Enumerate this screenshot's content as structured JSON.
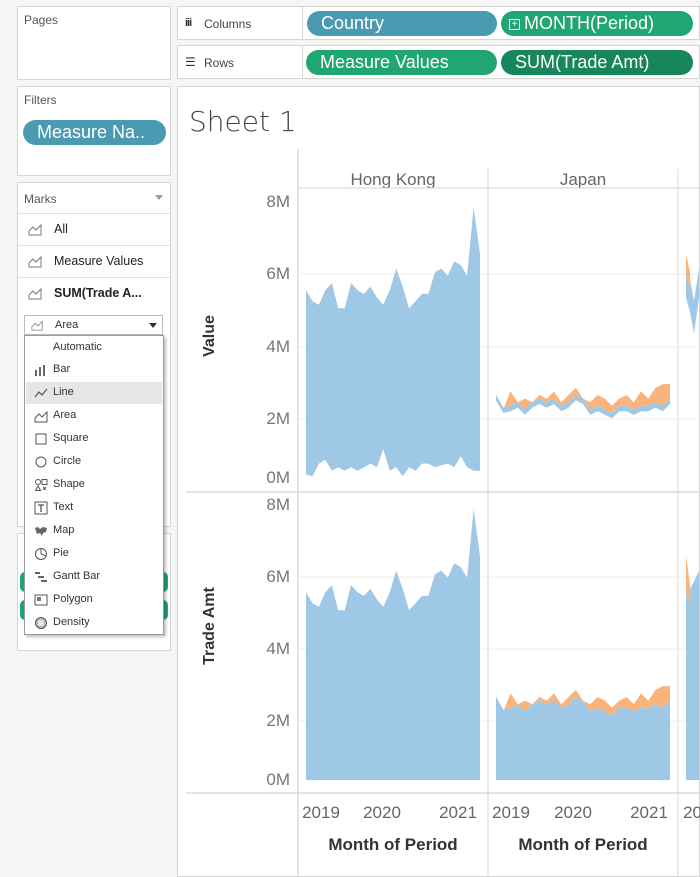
{
  "left": {
    "pages_title": "Pages",
    "filters_title": "Filters",
    "filter_pill": "Measure Na..",
    "marks_title": "Marks",
    "marks_rows": [
      "All",
      "Measure Values",
      "SUM(Trade A..."
    ],
    "mark_type_selected": "Area",
    "mark_type_options": [
      "Automatic",
      "Bar",
      "Line",
      "Area",
      "Square",
      "Circle",
      "Shape",
      "Text",
      "Map",
      "Pie",
      "Gantt Bar",
      "Polygon",
      "Density"
    ],
    "highlighted_option": "Line"
  },
  "shelves": {
    "columns_label": "Columns",
    "rows_label": "Rows",
    "columns_pills": [
      "Country",
      "MONTH(Period)"
    ],
    "rows_pills": [
      "Measure Values",
      "SUM(Trade Amt)"
    ]
  },
  "sheet": {
    "title": "Sheet 1"
  },
  "chart_data": {
    "type": "area",
    "countries": [
      "Hong Kong",
      "Japan"
    ],
    "row_titles": [
      "Value",
      "Trade Amt"
    ],
    "y_ticks": [
      "0M",
      "2M",
      "4M",
      "6M",
      "8M"
    ],
    "ylim": [
      0,
      8000000
    ],
    "x_ticks": [
      "2019",
      "2020",
      "2021"
    ],
    "xlabel": "Month of Period",
    "colors": {
      "blue": "#9ec8e5",
      "orange": "#fbb37a"
    },
    "hong_kong_upper": [
      5.2,
      4.9,
      4.8,
      5.2,
      5.4,
      4.7,
      4.7,
      5.4,
      5.2,
      5.1,
      5.3,
      5.0,
      4.8,
      5.2,
      5.8,
      5.3,
      4.7,
      4.9,
      5.1,
      5.1,
      5.7,
      5.8,
      5.6,
      6.0,
      5.9,
      5.6,
      7.5,
      6.2
    ],
    "hong_kong_value_lower": [
      0.1,
      0.05,
      0.4,
      0.5,
      0.2,
      0.3,
      0.2,
      0.3,
      0.2,
      0.3,
      0.4,
      0.3,
      0.8,
      0.2,
      0.3,
      0.05,
      0.3,
      0.2,
      0.4,
      0.4,
      0.3,
      0.35,
      0.4,
      0.3,
      0.6,
      0.3,
      0.2,
      0.2
    ],
    "japan_upper": [
      2.2,
      1.9,
      2.4,
      2.1,
      2.2,
      2.1,
      2.3,
      2.2,
      2.4,
      2.1,
      2.3,
      2.5,
      2.2,
      2.1,
      2.3,
      2.2,
      2.0,
      2.2,
      2.3,
      2.1,
      2.4,
      2.2,
      2.5,
      2.6,
      2.6
    ],
    "japan_blue": [
      2.3,
      1.95,
      2.0,
      2.1,
      1.9,
      2.1,
      2.2,
      2.1,
      2.2,
      2.0,
      2.1,
      2.3,
      2.2,
      1.9,
      2.0,
      1.9,
      1.8,
      2.0,
      2.0,
      1.9,
      2.0,
      2.0,
      2.1,
      2.0,
      2.2
    ]
  }
}
